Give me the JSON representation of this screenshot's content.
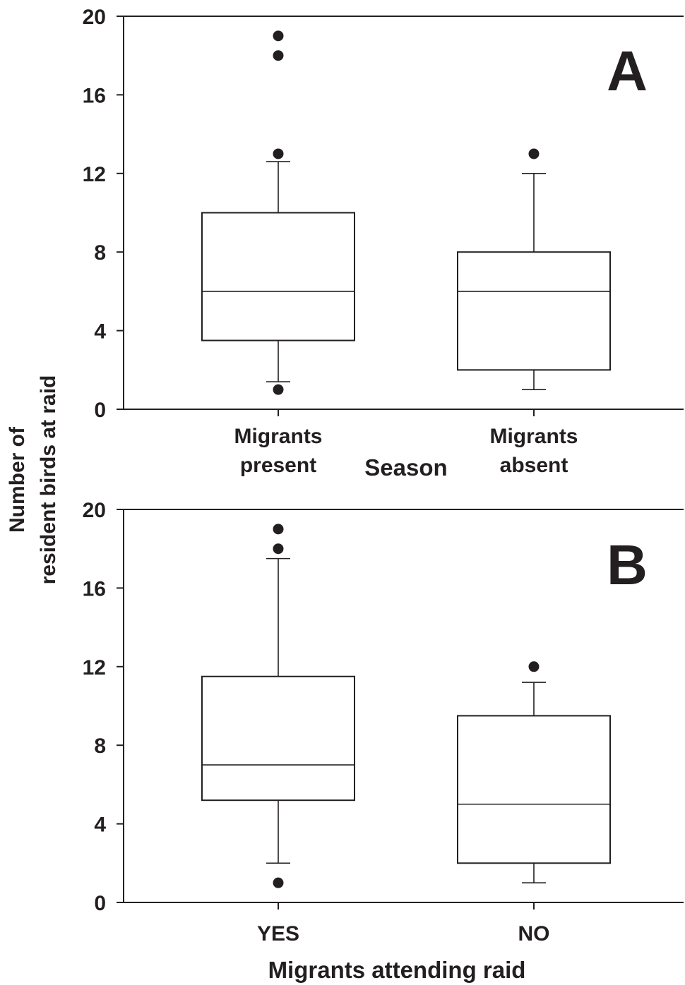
{
  "y_axis_label": [
    "Number of",
    "resident birds at raid"
  ],
  "chart_data": [
    {
      "type": "box",
      "panel_label": "A",
      "xlabel": "Season",
      "ylabel": "Number of resident birds at raid",
      "ylim": [
        0,
        20
      ],
      "yticks": [
        0,
        4,
        8,
        12,
        16,
        20
      ],
      "grid": false,
      "categories": [
        [
          "Migrants",
          "present"
        ],
        [
          "Migrants",
          "absent"
        ]
      ],
      "boxes": [
        {
          "category": "Migrants present",
          "whisker_low": 1.4,
          "q1": 3.5,
          "median": 6,
          "q3": 10,
          "whisker_high": 12.6,
          "outliers": [
            1,
            13,
            18,
            19
          ]
        },
        {
          "category": "Migrants absent",
          "whisker_low": 1,
          "q1": 2,
          "median": 6,
          "q3": 8,
          "whisker_high": 12,
          "outliers": [
            13
          ]
        }
      ]
    },
    {
      "type": "box",
      "panel_label": "B",
      "xlabel": "Migrants attending raid",
      "ylabel": "Number of resident birds at raid",
      "ylim": [
        0,
        20
      ],
      "yticks": [
        0,
        4,
        8,
        12,
        16,
        20
      ],
      "grid": false,
      "categories": [
        [
          "YES"
        ],
        [
          "NO"
        ]
      ],
      "boxes": [
        {
          "category": "YES",
          "whisker_low": 2,
          "q1": 5.2,
          "median": 7,
          "q3": 11.5,
          "whisker_high": 17.5,
          "outliers": [
            1,
            18,
            19
          ]
        },
        {
          "category": "NO",
          "whisker_low": 1,
          "q1": 2,
          "median": 5,
          "q3": 9.5,
          "whisker_high": 11.2,
          "outliers": [
            12
          ]
        }
      ]
    }
  ]
}
